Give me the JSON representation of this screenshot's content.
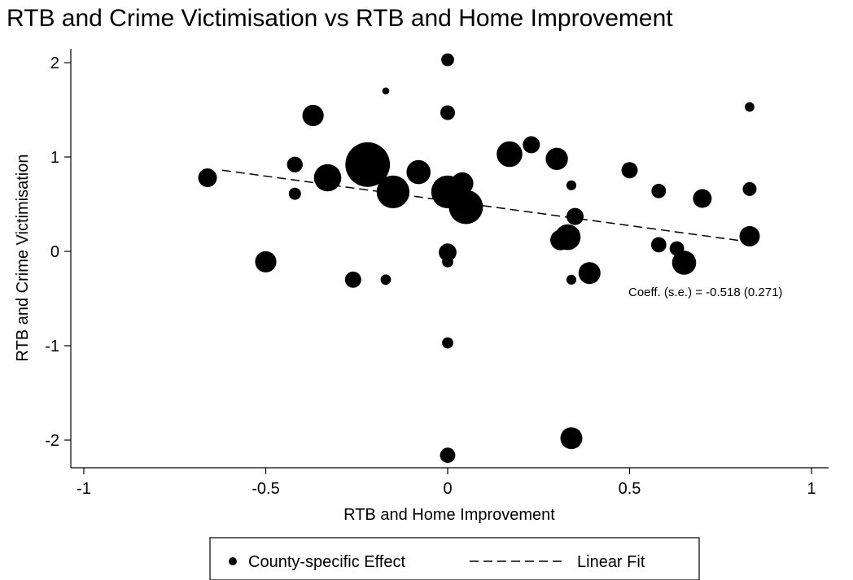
{
  "chart_data": {
    "type": "scatter",
    "title": "RTB and Crime Victimisation vs RTB and Home Improvement",
    "xlabel": "RTB and Home Improvement",
    "ylabel": "RTB and Crime Victimisation",
    "xlim": [
      -1.03,
      1.03
    ],
    "ylim": [
      -2.25,
      2.25
    ],
    "x_ticks": [
      "-1",
      "-0.5",
      "0",
      "0.5",
      "1"
    ],
    "x_tick_values": [
      -1,
      -0.5,
      0,
      0.5,
      1
    ],
    "y_ticks": [
      "2",
      "1",
      "0",
      "-1",
      "-2"
    ],
    "y_tick_values": [
      2,
      1,
      0,
      -1,
      -2
    ],
    "grid": false,
    "legend": {
      "placement": "bottom",
      "entries": [
        "County-specific Effect",
        "Linear Fit"
      ]
    },
    "annotation": "Coeff. (s.e.) = -0.518 (0.271)",
    "series": [
      {
        "name": "County-specific Effect",
        "kind": "weighted-scatter",
        "points": [
          {
            "x": 0.0,
            "y": 2.03,
            "w": 2
          },
          {
            "x": -0.17,
            "y": 1.7,
            "w": 0.6
          },
          {
            "x": 0.83,
            "y": 1.53,
            "w": 1.1
          },
          {
            "x": 0.0,
            "y": 1.47,
            "w": 2.6
          },
          {
            "x": -0.37,
            "y": 1.44,
            "w": 5.5
          },
          {
            "x": 0.23,
            "y": 1.13,
            "w": 3.5
          },
          {
            "x": 0.17,
            "y": 1.03,
            "w": 8
          },
          {
            "x": 0.3,
            "y": 0.98,
            "w": 6
          },
          {
            "x": -0.42,
            "y": 0.92,
            "w": 3
          },
          {
            "x": -0.22,
            "y": 0.92,
            "w": 24
          },
          {
            "x": -0.08,
            "y": 0.84,
            "w": 7
          },
          {
            "x": 0.5,
            "y": 0.86,
            "w": 3.2
          },
          {
            "x": -0.33,
            "y": 0.78,
            "w": 9
          },
          {
            "x": -0.66,
            "y": 0.78,
            "w": 4.2
          },
          {
            "x": 0.04,
            "y": 0.72,
            "w": 6
          },
          {
            "x": 0.34,
            "y": 0.7,
            "w": 1.2
          },
          {
            "x": 0.58,
            "y": 0.64,
            "w": 2.5
          },
          {
            "x": -0.15,
            "y": 0.63,
            "w": 13
          },
          {
            "x": 0.0,
            "y": 0.63,
            "w": 13
          },
          {
            "x": 0.83,
            "y": 0.66,
            "w": 2.3
          },
          {
            "x": -0.42,
            "y": 0.61,
            "w": 1.8
          },
          {
            "x": 0.7,
            "y": 0.56,
            "w": 4.2
          },
          {
            "x": 0.05,
            "y": 0.47,
            "w": 14
          },
          {
            "x": 0.35,
            "y": 0.37,
            "w": 3.5
          },
          {
            "x": 0.83,
            "y": 0.16,
            "w": 5
          },
          {
            "x": 0.33,
            "y": 0.15,
            "w": 8
          },
          {
            "x": 0.31,
            "y": 0.12,
            "w": 5
          },
          {
            "x": 0.58,
            "y": 0.07,
            "w": 2.8
          },
          {
            "x": 0.63,
            "y": 0.03,
            "w": 2.5
          },
          {
            "x": 0.0,
            "y": -0.01,
            "w": 3.8
          },
          {
            "x": -0.5,
            "y": -0.11,
            "w": 5.5
          },
          {
            "x": 0.0,
            "y": -0.11,
            "w": 1.5
          },
          {
            "x": 0.65,
            "y": -0.12,
            "w": 7
          },
          {
            "x": 0.39,
            "y": -0.23,
            "w": 5.8
          },
          {
            "x": -0.26,
            "y": -0.3,
            "w": 3.2
          },
          {
            "x": -0.17,
            "y": -0.3,
            "w": 1.3
          },
          {
            "x": 0.34,
            "y": -0.3,
            "w": 1.2
          },
          {
            "x": 0.0,
            "y": -0.97,
            "w": 1.5
          },
          {
            "x": 0.0,
            "y": -2.16,
            "w": 2.8
          },
          {
            "x": 0.34,
            "y": -1.98,
            "w": 5.8
          }
        ]
      },
      {
        "name": "Linear Fit",
        "kind": "dashed-line",
        "x": [
          -0.62,
          0.83
        ],
        "y": [
          0.86,
          0.1
        ]
      }
    ]
  }
}
